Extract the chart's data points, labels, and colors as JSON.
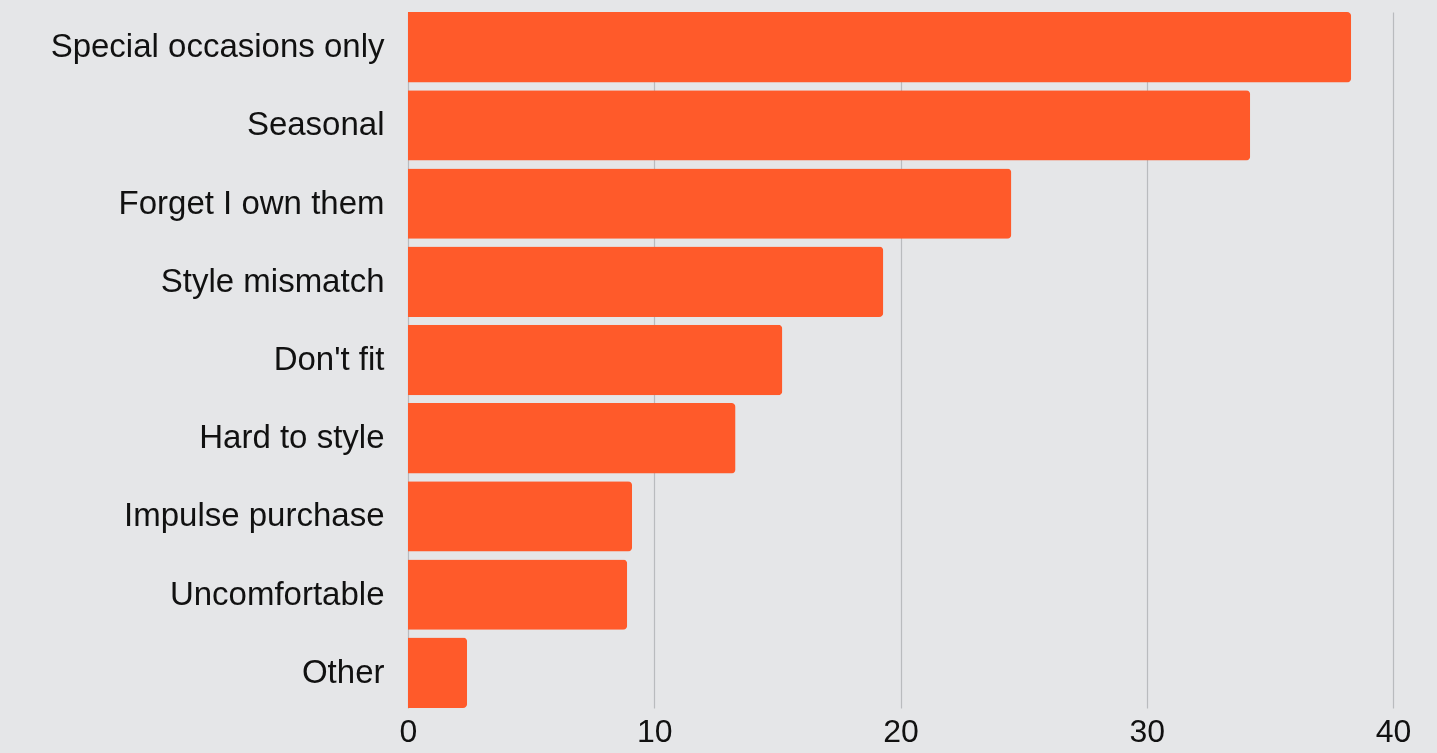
{
  "chart_data": {
    "type": "bar",
    "orientation": "horizontal",
    "categories": [
      "Special occasions only",
      "Seasonal",
      "Forget I own them",
      "Style mismatch",
      "Don't fit",
      "Hard to style",
      "Impulse purchase",
      "Uncomfortable",
      "Other"
    ],
    "values": [
      38.3,
      34.2,
      24.5,
      19.3,
      15.2,
      13.3,
      9.1,
      8.9,
      2.4
    ],
    "color": "#ff5a2a",
    "xlim": [
      0,
      40
    ],
    "xticks": [
      0,
      10,
      20,
      30,
      40
    ],
    "grid": "x"
  }
}
